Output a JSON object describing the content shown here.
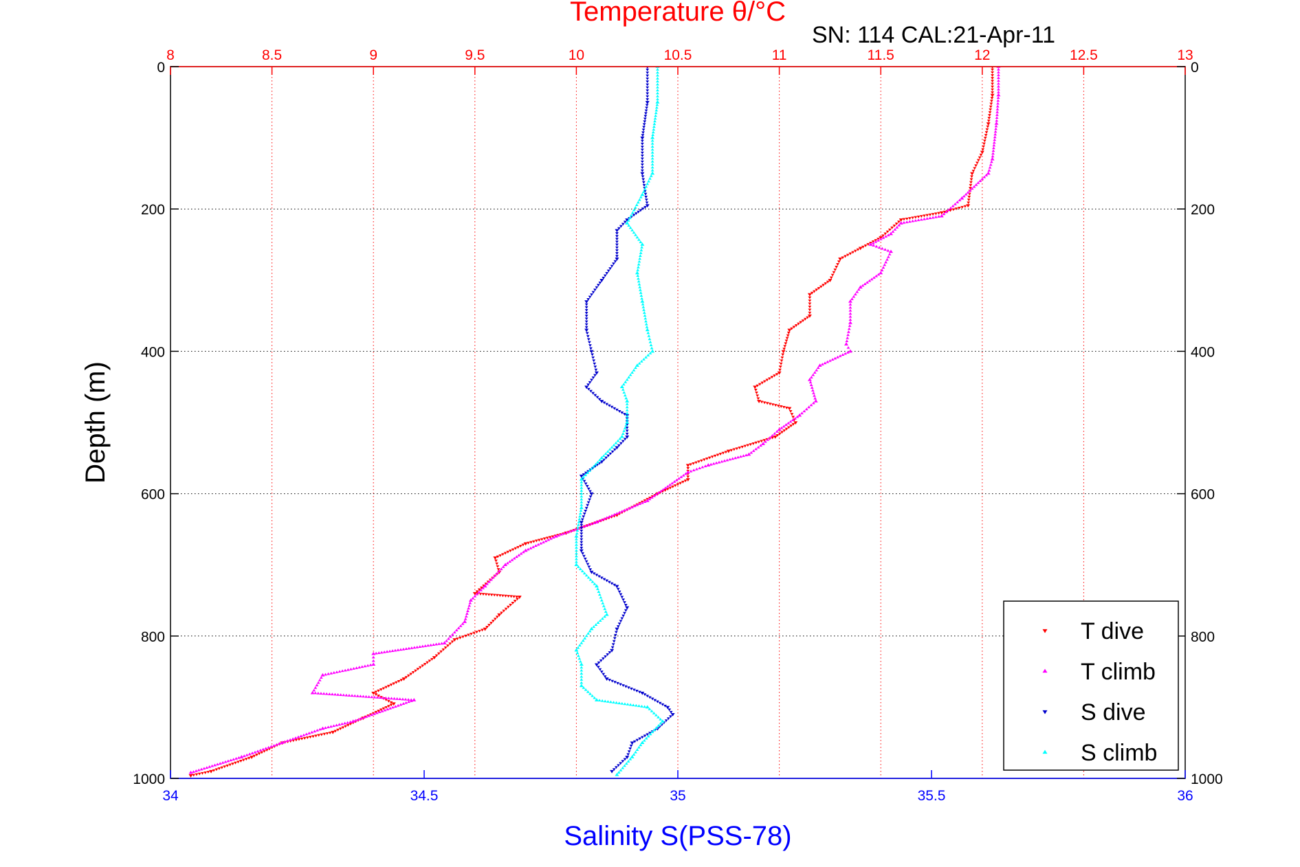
{
  "chart_data": {
    "type": "scatter",
    "title": "Temperature θ/°C",
    "subtitle": "SN: 114  CAL:21-Apr-11",
    "xlabel": "Salinity S(PSS-78)",
    "x2label": "Temperature θ/°C",
    "ylabel": "Depth (m)",
    "xlim": [
      34,
      36
    ],
    "x2lim": [
      8,
      13
    ],
    "ylim": [
      0,
      1000
    ],
    "y_reversed": true,
    "grid": true,
    "legend_position": "bottom-right",
    "x_ticks": [
      "34",
      "34.5",
      "35",
      "35.5",
      "36"
    ],
    "x2_ticks": [
      "8",
      "8.5",
      "9",
      "9.5",
      "10",
      "10.5",
      "11",
      "11.5",
      "12",
      "12.5",
      "13"
    ],
    "y_ticks": [
      "0",
      "200",
      "400",
      "600",
      "800",
      "1000"
    ],
    "colors": {
      "temperature_axis": "#ff0000",
      "salinity_axis": "#0000ff",
      "t_dive": "#ff0000",
      "t_climb": "#ff00ff",
      "s_dive": "#0000cc",
      "s_climb": "#00ffff"
    },
    "series": [
      {
        "name": "T dive",
        "axis": "temperature",
        "marker": "triangle-down",
        "color": "#ff0000",
        "points": [
          [
            12.05,
            0
          ],
          [
            12.05,
            40
          ],
          [
            12.03,
            80
          ],
          [
            12.0,
            120
          ],
          [
            11.95,
            150
          ],
          [
            11.93,
            195
          ],
          [
            11.8,
            205
          ],
          [
            11.6,
            215
          ],
          [
            11.5,
            240
          ],
          [
            11.4,
            255
          ],
          [
            11.3,
            270
          ],
          [
            11.25,
            300
          ],
          [
            11.15,
            320
          ],
          [
            11.15,
            350
          ],
          [
            11.05,
            370
          ],
          [
            11.02,
            400
          ],
          [
            11.0,
            430
          ],
          [
            10.88,
            450
          ],
          [
            10.9,
            470
          ],
          [
            11.05,
            480
          ],
          [
            11.08,
            500
          ],
          [
            10.98,
            520
          ],
          [
            10.75,
            540
          ],
          [
            10.55,
            560
          ],
          [
            10.55,
            580
          ],
          [
            10.4,
            600
          ],
          [
            10.2,
            630
          ],
          [
            9.95,
            655
          ],
          [
            9.75,
            670
          ],
          [
            9.6,
            690
          ],
          [
            9.62,
            710
          ],
          [
            9.5,
            740
          ],
          [
            9.72,
            745
          ],
          [
            9.62,
            770
          ],
          [
            9.55,
            790
          ],
          [
            9.4,
            805
          ],
          [
            9.3,
            830
          ],
          [
            9.15,
            860
          ],
          [
            9.0,
            880
          ],
          [
            9.1,
            895
          ],
          [
            8.95,
            915
          ],
          [
            8.8,
            935
          ],
          [
            8.55,
            950
          ],
          [
            8.4,
            970
          ],
          [
            8.2,
            990
          ],
          [
            8.1,
            996
          ]
        ]
      },
      {
        "name": "T climb",
        "axis": "temperature",
        "marker": "triangle-up",
        "color": "#ff00ff",
        "points": [
          [
            12.08,
            0
          ],
          [
            12.08,
            40
          ],
          [
            12.07,
            80
          ],
          [
            12.05,
            130
          ],
          [
            12.03,
            150
          ],
          [
            11.9,
            185
          ],
          [
            11.8,
            210
          ],
          [
            11.6,
            220
          ],
          [
            11.55,
            235
          ],
          [
            11.45,
            250
          ],
          [
            11.55,
            260
          ],
          [
            11.5,
            290
          ],
          [
            11.4,
            310
          ],
          [
            11.35,
            330
          ],
          [
            11.35,
            360
          ],
          [
            11.33,
            390
          ],
          [
            11.35,
            400
          ],
          [
            11.2,
            420
          ],
          [
            11.15,
            440
          ],
          [
            11.18,
            470
          ],
          [
            11.1,
            490
          ],
          [
            11.0,
            510
          ],
          [
            10.92,
            530
          ],
          [
            10.85,
            545
          ],
          [
            10.65,
            560
          ],
          [
            10.55,
            570
          ],
          [
            10.35,
            610
          ],
          [
            10.1,
            640
          ],
          [
            9.9,
            660
          ],
          [
            9.75,
            680
          ],
          [
            9.65,
            700
          ],
          [
            9.55,
            730
          ],
          [
            9.48,
            750
          ],
          [
            9.45,
            780
          ],
          [
            9.35,
            810
          ],
          [
            9.0,
            825
          ],
          [
            9.0,
            840
          ],
          [
            8.75,
            855
          ],
          [
            8.7,
            880
          ],
          [
            9.2,
            890
          ],
          [
            8.9,
            920
          ],
          [
            8.75,
            930
          ],
          [
            8.55,
            950
          ],
          [
            8.35,
            970
          ],
          [
            8.1,
            992
          ]
        ]
      },
      {
        "name": "S dive",
        "axis": "salinity",
        "marker": "triangle-down",
        "color": "#0000cc",
        "points": [
          [
            34.94,
            0
          ],
          [
            34.94,
            50
          ],
          [
            34.93,
            100
          ],
          [
            34.93,
            150
          ],
          [
            34.94,
            195
          ],
          [
            34.9,
            215
          ],
          [
            34.88,
            230
          ],
          [
            34.88,
            270
          ],
          [
            34.85,
            300
          ],
          [
            34.82,
            330
          ],
          [
            34.82,
            370
          ],
          [
            34.83,
            400
          ],
          [
            34.84,
            430
          ],
          [
            34.82,
            450
          ],
          [
            34.85,
            470
          ],
          [
            34.9,
            490
          ],
          [
            34.9,
            520
          ],
          [
            34.88,
            535
          ],
          [
            34.85,
            555
          ],
          [
            34.81,
            575
          ],
          [
            34.83,
            600
          ],
          [
            34.81,
            640
          ],
          [
            34.81,
            680
          ],
          [
            34.83,
            710
          ],
          [
            34.88,
            730
          ],
          [
            34.9,
            760
          ],
          [
            34.88,
            790
          ],
          [
            34.87,
            820
          ],
          [
            34.84,
            840
          ],
          [
            34.86,
            860
          ],
          [
            34.93,
            880
          ],
          [
            34.98,
            900
          ],
          [
            34.99,
            910
          ],
          [
            34.96,
            930
          ],
          [
            34.91,
            950
          ],
          [
            34.9,
            970
          ],
          [
            34.87,
            990
          ]
        ]
      },
      {
        "name": "S climb",
        "axis": "salinity",
        "marker": "triangle-up",
        "color": "#00ffff",
        "points": [
          [
            34.96,
            0
          ],
          [
            34.96,
            50
          ],
          [
            34.95,
            100
          ],
          [
            34.95,
            150
          ],
          [
            34.93,
            180
          ],
          [
            34.9,
            220
          ],
          [
            34.93,
            250
          ],
          [
            34.92,
            290
          ],
          [
            34.93,
            330
          ],
          [
            34.94,
            370
          ],
          [
            34.95,
            400
          ],
          [
            34.92,
            420
          ],
          [
            34.89,
            450
          ],
          [
            34.9,
            470
          ],
          [
            34.9,
            500
          ],
          [
            34.89,
            520
          ],
          [
            34.85,
            550
          ],
          [
            34.81,
            580
          ],
          [
            34.81,
            620
          ],
          [
            34.8,
            660
          ],
          [
            34.8,
            700
          ],
          [
            34.84,
            730
          ],
          [
            34.86,
            770
          ],
          [
            34.83,
            790
          ],
          [
            34.8,
            820
          ],
          [
            34.81,
            840
          ],
          [
            34.81,
            870
          ],
          [
            34.84,
            890
          ],
          [
            34.94,
            900
          ],
          [
            34.97,
            920
          ],
          [
            34.93,
            950
          ],
          [
            34.91,
            970
          ],
          [
            34.88,
            995
          ]
        ]
      }
    ]
  }
}
